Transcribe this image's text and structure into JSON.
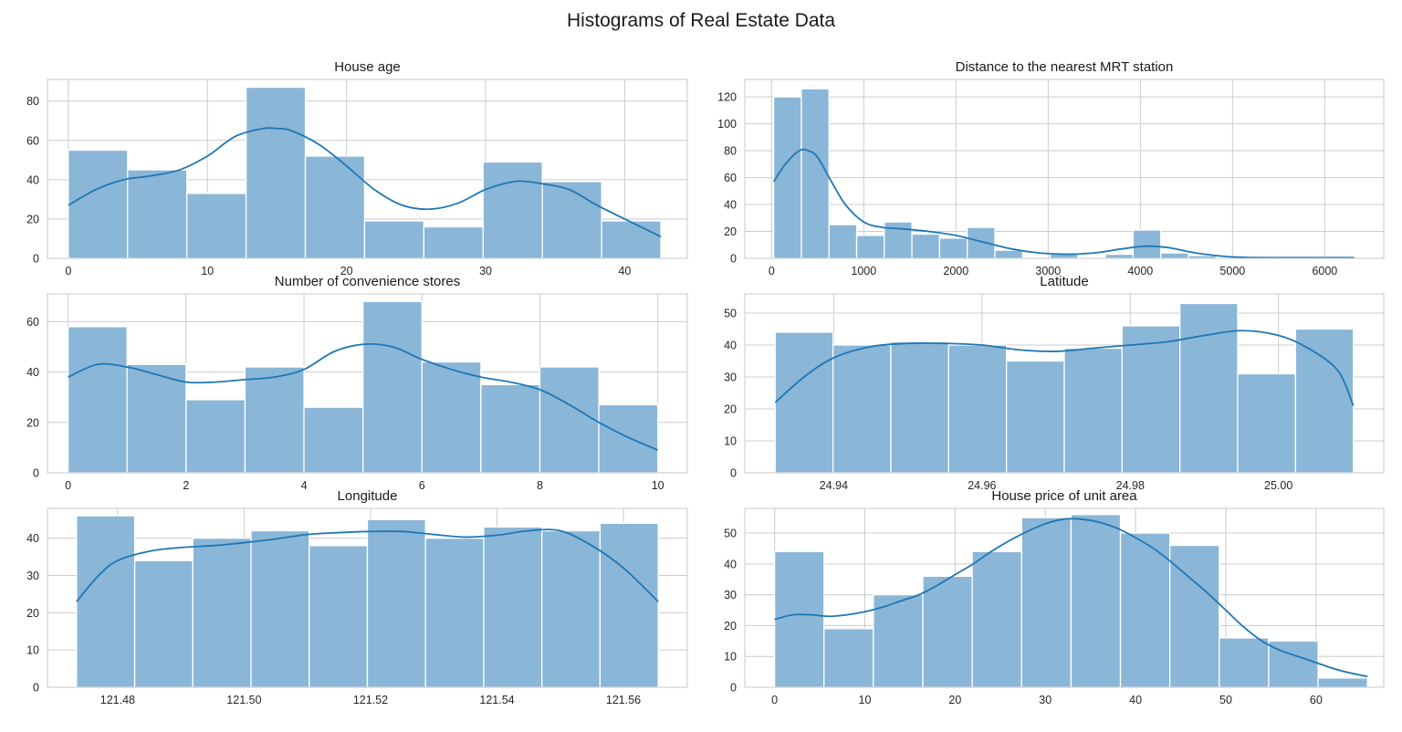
{
  "figure": {
    "suptitle": "Histograms of Real Estate Data",
    "bar_color": "#8ab6d8",
    "kde_color": "#1f77b4",
    "grid_color": "#cccccc",
    "grid": true
  },
  "chart_data": [
    {
      "type": "bar",
      "title": "House age",
      "xlabel": "",
      "ylabel": "",
      "bin_edges": [
        0,
        4.26,
        8.52,
        12.78,
        17.04,
        21.3,
        25.56,
        29.82,
        34.08,
        38.34,
        42.6
      ],
      "counts": [
        55,
        45,
        33,
        87,
        52,
        19,
        16,
        49,
        39,
        19
      ],
      "kde": {
        "x": [
          0,
          2,
          4,
          6,
          8,
          10,
          12,
          14,
          15,
          16,
          18,
          20,
          22,
          24,
          26,
          28,
          30,
          32,
          33,
          34,
          36,
          38,
          40,
          42.6
        ],
        "y": [
          27,
          35,
          40,
          42,
          45,
          52,
          62,
          66,
          66,
          65,
          58,
          47,
          35,
          27,
          25,
          28,
          35,
          39,
          39,
          38,
          35,
          27,
          20,
          11
        ]
      },
      "xlim": [
        -1.5,
        44.5
      ],
      "ylim": [
        0,
        91
      ],
      "xticks": [
        0,
        10,
        20,
        30,
        40
      ],
      "xtick_labels": [
        "0",
        "10",
        "20",
        "30",
        "40"
      ],
      "yticks": [
        0,
        20,
        40,
        60,
        80
      ],
      "ytick_labels": [
        "0",
        "20",
        "40",
        "60",
        "80"
      ]
    },
    {
      "type": "bar",
      "title": "Distance to the nearest MRT station",
      "xlabel": "",
      "ylabel": "",
      "bin_edges": [
        23.38,
        323.26,
        623.14,
        923.02,
        1222.9,
        1522.78,
        1822.66,
        2122.54,
        2422.42,
        2722.3,
        3022.18,
        3322.06,
        3621.94,
        3921.82,
        4221.7,
        4521.58,
        4821.46,
        5121.34,
        5421.22,
        5721.1,
        6020.98,
        6320.86
      ],
      "counts": [
        120,
        126,
        25,
        17,
        27,
        18,
        15,
        23,
        6,
        0,
        4,
        0,
        3,
        21,
        4,
        2,
        0,
        0,
        0,
        1,
        1
      ],
      "kde": {
        "x": [
          23,
          150,
          300,
          400,
          500,
          650,
          800,
          1000,
          1200,
          1400,
          1700,
          2000,
          2300,
          2600,
          2900,
          3200,
          3500,
          3800,
          4050,
          4300,
          4600,
          5000,
          5500,
          6000,
          6320
        ],
        "y": [
          57,
          70,
          80,
          80,
          75,
          57,
          40,
          27,
          23,
          22,
          20,
          17,
          12,
          7,
          4,
          3,
          4,
          7,
          9,
          8,
          4,
          1,
          0.5,
          0.5,
          0.5
        ]
      },
      "xlim": [
        -290,
        6640
      ],
      "ylim": [
        0,
        133
      ],
      "xticks": [
        0,
        1000,
        2000,
        3000,
        4000,
        5000,
        6000
      ],
      "xtick_labels": [
        "0",
        "1000",
        "2000",
        "3000",
        "4000",
        "5000",
        "6000"
      ],
      "yticks": [
        0,
        20,
        40,
        60,
        80,
        100,
        120
      ],
      "ytick_labels": [
        "0",
        "20",
        "40",
        "60",
        "80",
        "100",
        "120"
      ]
    },
    {
      "type": "bar",
      "title": "Number of convenience stores",
      "xlabel": "",
      "ylabel": "",
      "bin_edges": [
        0,
        1,
        2,
        3,
        4,
        5,
        6,
        7,
        8,
        9,
        10
      ],
      "counts": [
        58,
        43,
        29,
        42,
        26,
        68,
        44,
        35,
        42,
        27
      ],
      "kde": {
        "x": [
          0,
          0.5,
          1,
          1.5,
          2,
          2.5,
          3,
          3.5,
          4,
          4.5,
          5,
          5.5,
          6,
          6.5,
          7,
          7.5,
          8,
          8.5,
          9,
          9.5,
          10
        ],
        "y": [
          38,
          43,
          42,
          39,
          36,
          36,
          37,
          38,
          41,
          48,
          51,
          50,
          45,
          41,
          38,
          36,
          33,
          27,
          20,
          14,
          9
        ]
      },
      "xlim": [
        -0.35,
        10.5
      ],
      "ylim": [
        0,
        71
      ],
      "xticks": [
        0,
        2,
        4,
        6,
        8,
        10
      ],
      "xtick_labels": [
        "0",
        "2",
        "4",
        "6",
        "8",
        "10"
      ],
      "yticks": [
        0,
        20,
        40,
        60
      ],
      "ytick_labels": [
        "0",
        "20",
        "40",
        "60"
      ]
    },
    {
      "type": "bar",
      "title": "Latitude",
      "xlabel": "",
      "ylabel": "",
      "bin_edges": [
        24.9321,
        24.9399,
        24.9477,
        24.9555,
        24.9633,
        24.9711,
        24.9789,
        24.9867,
        24.9945,
        25.0023,
        25.0101
      ],
      "counts": [
        44,
        40,
        41,
        40,
        35,
        39,
        46,
        53,
        31,
        45
      ],
      "kde": {
        "x": [
          24.9321,
          24.936,
          24.94,
          24.945,
          24.95,
          24.955,
          24.96,
          24.965,
          24.97,
          24.975,
          24.98,
          24.985,
          24.99,
          24.995,
          25.0,
          25.004,
          25.008,
          25.0101
        ],
        "y": [
          22,
          30,
          36,
          39.5,
          40.5,
          40.5,
          40,
          38.5,
          38,
          39,
          40,
          41,
          43,
          44.5,
          43,
          39,
          32,
          21
        ]
      },
      "xlim": [
        24.928,
        25.0142
      ],
      "ylim": [
        0,
        56
      ],
      "xticks": [
        24.94,
        24.96,
        24.98,
        25.0
      ],
      "xtick_labels": [
        "24.94",
        "24.96",
        "24.98",
        "25.00"
      ],
      "yticks": [
        0,
        10,
        20,
        30,
        40,
        50
      ],
      "ytick_labels": [
        "0",
        "10",
        "20",
        "30",
        "40",
        "50"
      ]
    },
    {
      "type": "bar",
      "title": "Longitude",
      "xlabel": "",
      "ylabel": "",
      "bin_edges": [
        121.4735,
        121.4827,
        121.4919,
        121.5011,
        121.5103,
        121.5195,
        121.5287,
        121.5379,
        121.5471,
        121.5563,
        121.5655
      ],
      "counts": [
        46,
        34,
        40,
        42,
        38,
        45,
        40,
        43,
        42,
        44
      ],
      "kde": {
        "x": [
          121.4735,
          121.477,
          121.48,
          121.485,
          121.49,
          121.495,
          121.5,
          121.505,
          121.51,
          121.515,
          121.52,
          121.525,
          121.53,
          121.535,
          121.54,
          121.545,
          121.55,
          121.555,
          121.56,
          121.5655
        ],
        "y": [
          23,
          30,
          34,
          36.5,
          37.5,
          38,
          38.8,
          39.8,
          41,
          41.5,
          41.8,
          41.8,
          41,
          40.3,
          40.8,
          42,
          42,
          38,
          32,
          23
        ]
      },
      "xlim": [
        121.4689,
        121.5701
      ],
      "ylim": [
        0,
        48
      ],
      "xticks": [
        121.48,
        121.5,
        121.52,
        121.54,
        121.56
      ],
      "xtick_labels": [
        "121.48",
        "121.50",
        "121.52",
        "121.54",
        "121.56"
      ],
      "yticks": [
        0,
        10,
        20,
        30,
        40
      ],
      "ytick_labels": [
        "0",
        "10",
        "20",
        "30",
        "40"
      ]
    },
    {
      "type": "bar",
      "title": "House price of unit area",
      "xlabel": "",
      "ylabel": "",
      "bin_edges": [
        0,
        5.475,
        10.95,
        16.425,
        21.9,
        27.375,
        32.85,
        38.325,
        43.8,
        49.275,
        54.75,
        60.225,
        65.7
      ],
      "counts": [
        44,
        19,
        30,
        36,
        44,
        55,
        56,
        50,
        46,
        16,
        15,
        3
      ],
      "kde": {
        "x": [
          0,
          2,
          4,
          6,
          8,
          10,
          12,
          14,
          16,
          18,
          20,
          22,
          24,
          26,
          28,
          30,
          32,
          34,
          36,
          38,
          40,
          42,
          44,
          46,
          48,
          50,
          52,
          54,
          56,
          58,
          60,
          62,
          64,
          65.7
        ],
        "y": [
          22,
          23.5,
          23.5,
          23,
          23.5,
          24.5,
          26,
          28,
          30,
          33,
          36.5,
          40,
          44,
          47.5,
          50.5,
          53,
          54.5,
          54.5,
          53.5,
          51.5,
          48.5,
          45,
          40.5,
          35.5,
          30.5,
          25,
          19.5,
          15,
          12,
          10,
          8,
          6,
          4.5,
          3.5
        ]
      },
      "xlim": [
        -3.3,
        67.5
      ],
      "ylim": [
        0,
        58
      ],
      "xticks": [
        0,
        10,
        20,
        30,
        40,
        50,
        60
      ],
      "xtick_labels": [
        "0",
        "10",
        "20",
        "30",
        "40",
        "50",
        "60"
      ],
      "yticks": [
        0,
        10,
        20,
        30,
        40,
        50
      ],
      "ytick_labels": [
        "0",
        "10",
        "20",
        "30",
        "40",
        "50"
      ]
    }
  ]
}
